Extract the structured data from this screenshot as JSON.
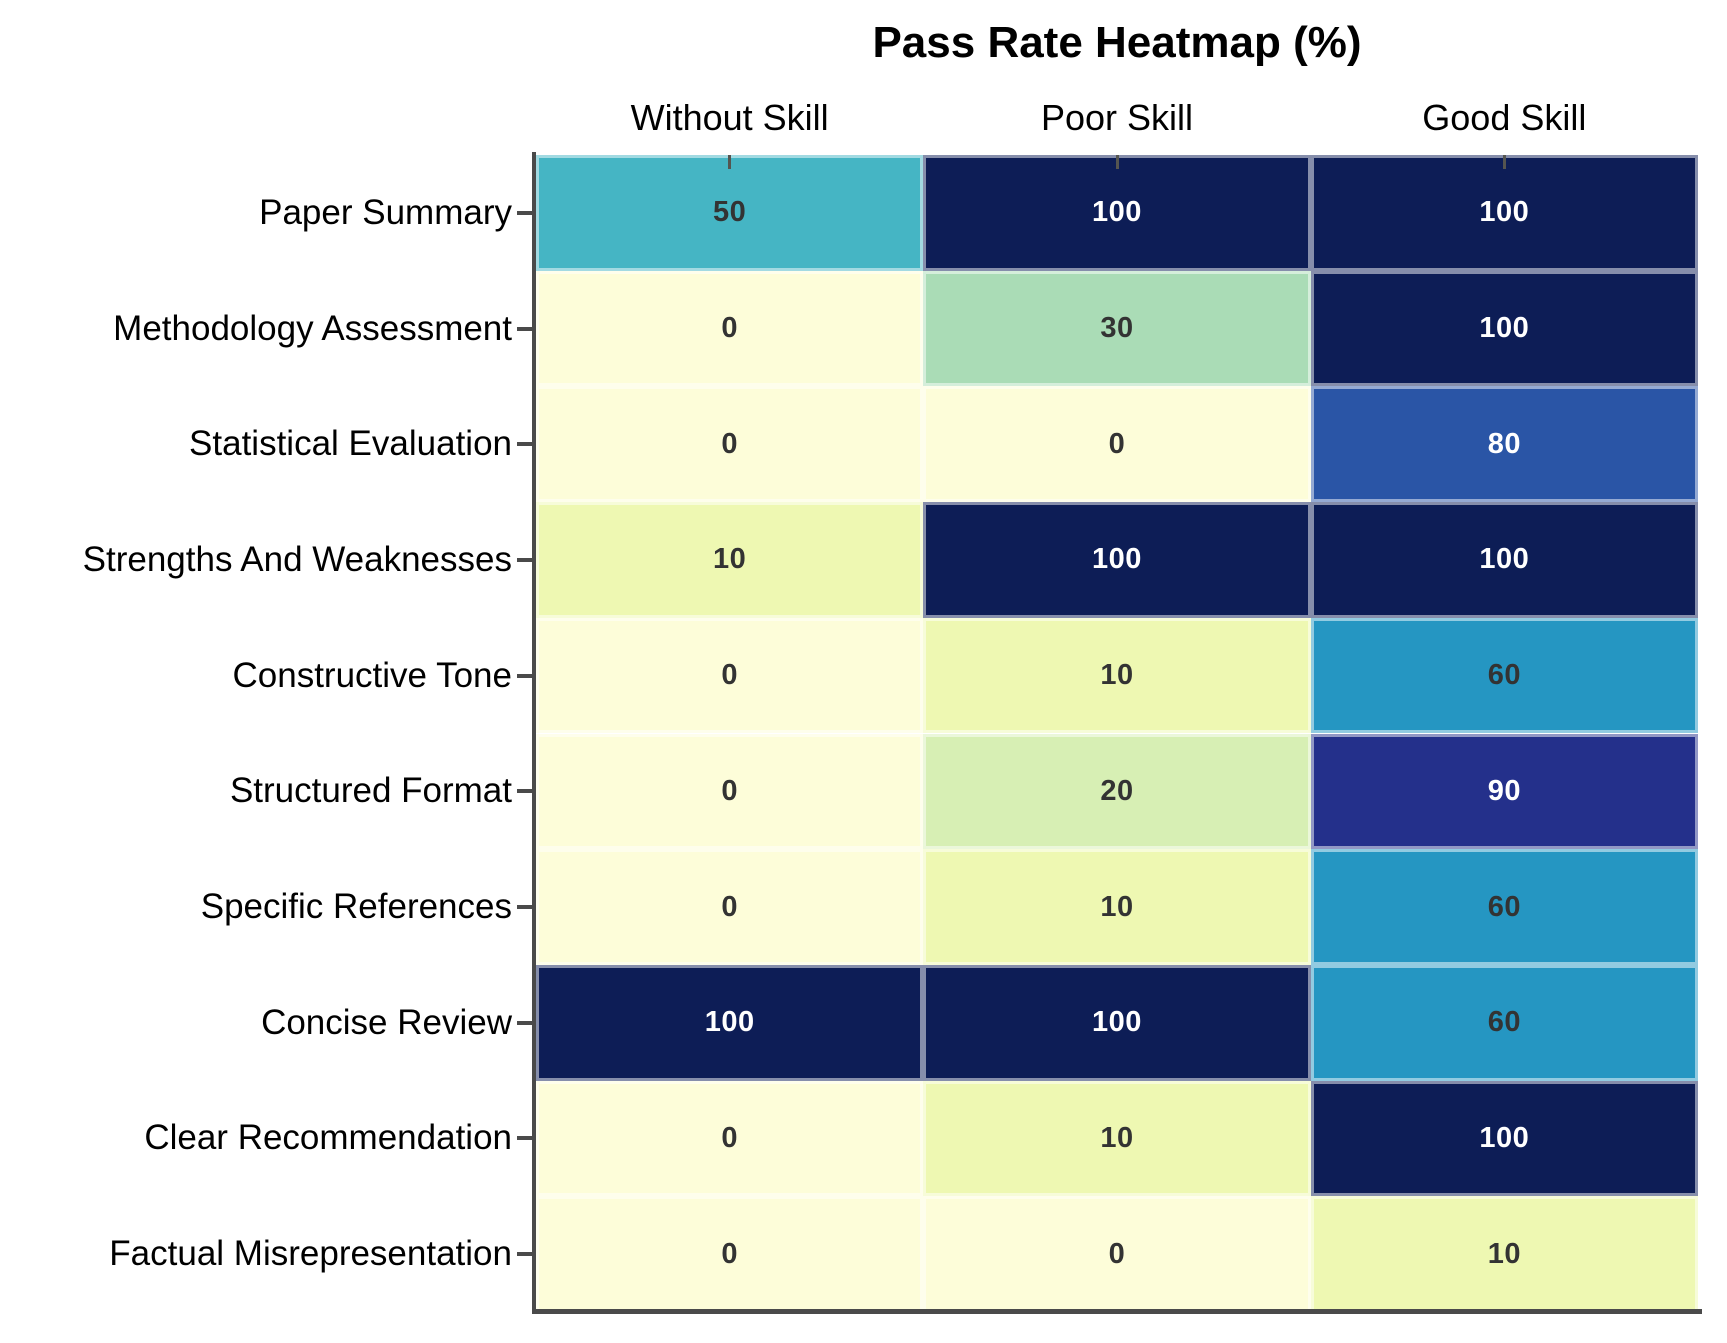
{
  "chart_data": {
    "type": "heatmap",
    "title": "Pass Rate Heatmap (%)",
    "unit": "%",
    "columns": [
      "Without Skill",
      "Poor Skill",
      "Good Skill"
    ],
    "rows": [
      "Paper Summary",
      "Methodology Assessment",
      "Statistical Evaluation",
      "Strengths And Weaknesses",
      "Constructive Tone",
      "Structured Format",
      "Specific References",
      "Concise Review",
      "Clear Recommendation",
      "Factual Misrepresentation"
    ],
    "values": [
      [
        50,
        100,
        100
      ],
      [
        0,
        30,
        100
      ],
      [
        0,
        0,
        80
      ],
      [
        10,
        100,
        100
      ],
      [
        0,
        10,
        60
      ],
      [
        0,
        20,
        90
      ],
      [
        0,
        10,
        60
      ],
      [
        100,
        100,
        60
      ],
      [
        0,
        10,
        100
      ],
      [
        0,
        0,
        10
      ]
    ],
    "value_range": [
      0,
      100
    ],
    "colormap": "YlGnBu",
    "color_scale": {
      "0": "#fdfdd9",
      "10": "#eef8b2",
      "20": "#d7efb4",
      "30": "#aadcb6",
      "50": "#45b5c4",
      "60": "#2596c2",
      "80": "#2a55a6",
      "90": "#24308b",
      "100": "#0d1d56"
    },
    "light_text_threshold": 80,
    "cell_text_dark": "#333333",
    "cell_text_light": "#ffffff",
    "grid_line_color": "rgba(255,255,255,0.5)",
    "axis_color": "#4a4a4a",
    "legend": "none",
    "grid": "cell-gaps-only"
  }
}
